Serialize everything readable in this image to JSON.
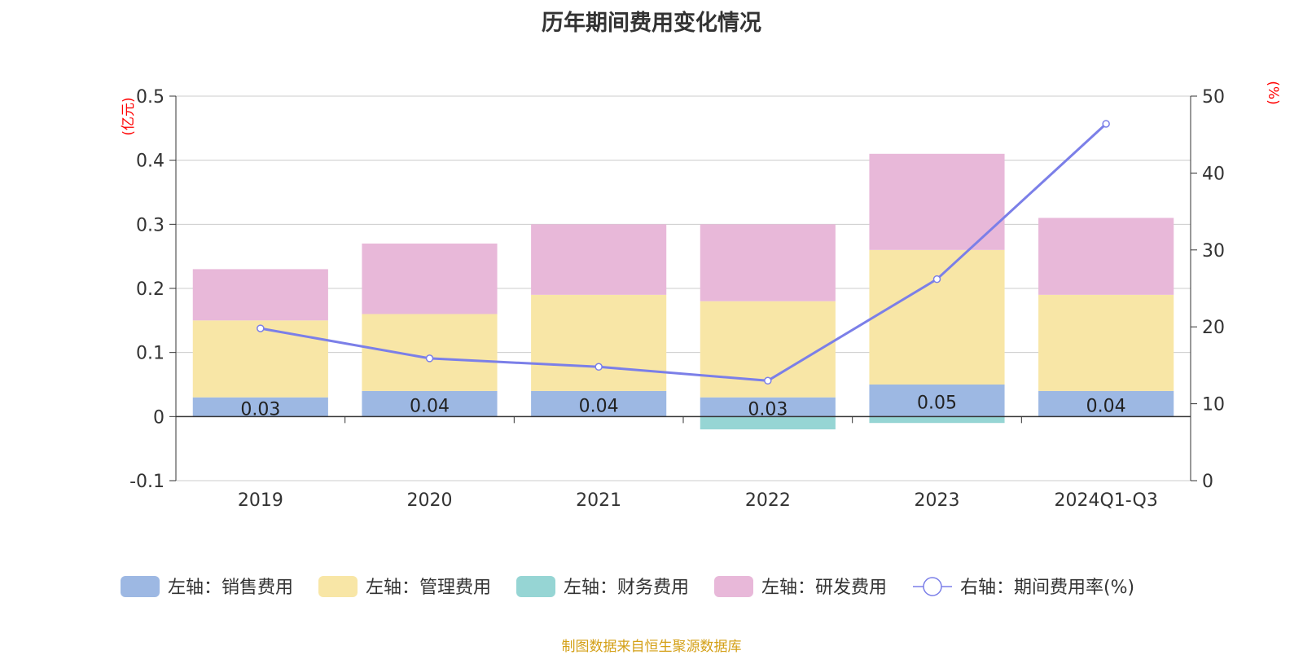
{
  "title": "历年期间费用变化情况",
  "source": "制图数据来自恒生聚源数据库",
  "chart_data": {
    "type": "bar",
    "stacked": true,
    "categories": [
      "2019",
      "2020",
      "2021",
      "2022",
      "2023",
      "2024Q1-Q3"
    ],
    "series": [
      {
        "name": "左轴：销售费用",
        "axis": "left",
        "color": "#9db8e3",
        "values": [
          0.03,
          0.04,
          0.04,
          0.03,
          0.05,
          0.04
        ],
        "labels": [
          "0.03",
          "0.04",
          "0.04",
          "0.03",
          "0.05",
          "0.04"
        ]
      },
      {
        "name": "左轴：管理费用",
        "axis": "left",
        "color": "#f8e6a6",
        "values": [
          0.12,
          0.12,
          0.15,
          0.15,
          0.21,
          0.15
        ]
      },
      {
        "name": "左轴：财务费用",
        "axis": "left",
        "color": "#96d5d4",
        "values": [
          0.0,
          0.0,
          0.0,
          -0.02,
          -0.01,
          0.0
        ]
      },
      {
        "name": "左轴：研发费用",
        "axis": "left",
        "color": "#e8b8d9",
        "values": [
          0.08,
          0.11,
          0.11,
          0.12,
          0.15,
          0.12
        ]
      },
      {
        "name": "右轴：期间费用率(%)",
        "axis": "right",
        "type": "line",
        "color": "#7b7fe8",
        "values": [
          19.8,
          15.9,
          14.8,
          13.0,
          26.2,
          46.4
        ]
      }
    ],
    "left_axis": {
      "label": "(亿元)",
      "ylim": [
        -0.1,
        0.5
      ],
      "ticks": [
        0.5,
        0.4,
        0.3,
        0.2,
        0.1,
        0,
        -0.1
      ],
      "tick_labels": [
        "0.5",
        "0.4",
        "0.3",
        "0.2",
        "0.1",
        "0",
        "-0.1"
      ]
    },
    "right_axis": {
      "label": "(%)",
      "ylim": [
        0,
        50
      ],
      "ticks": [
        50,
        40,
        30,
        20,
        10,
        0
      ],
      "tick_labels": [
        "50",
        "40",
        "30",
        "20",
        "10",
        "0"
      ]
    },
    "axis_label_color": "#ff0000",
    "grid": true,
    "legend": "bottom"
  }
}
